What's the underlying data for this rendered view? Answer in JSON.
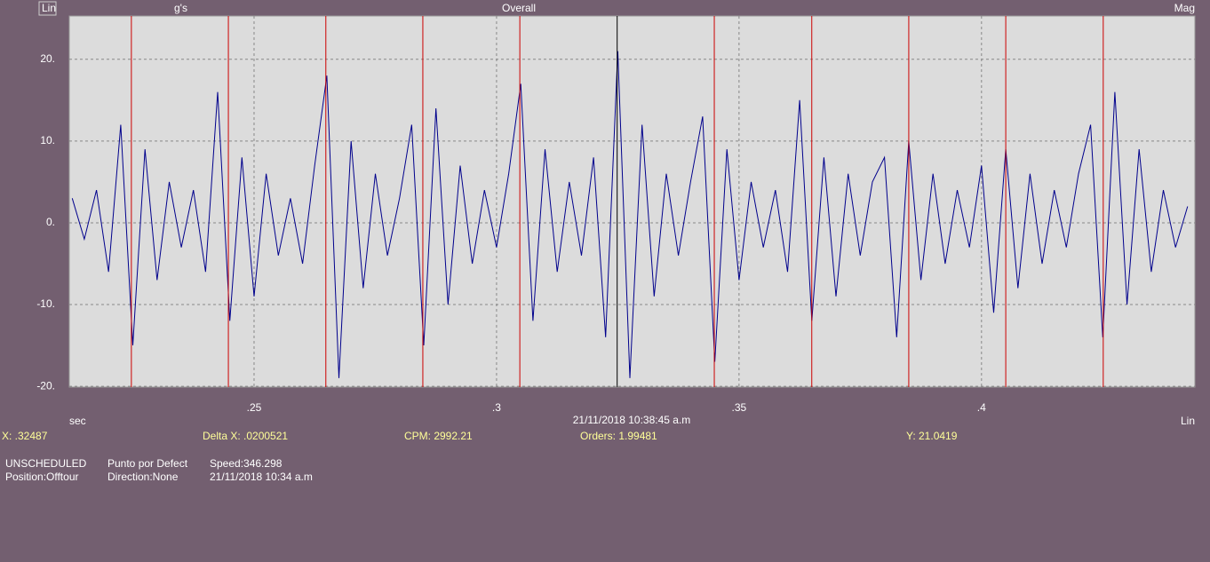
{
  "chart_data": {
    "type": "line",
    "title": "Overall",
    "y_label": "g's",
    "x_label": "sec",
    "timestamp": "21/11/2018 10:38:45 a.m",
    "x": [
      0.2125,
      0.215,
      0.2175,
      0.22,
      0.2225,
      0.225,
      0.2275,
      0.23,
      0.2325,
      0.235,
      0.2375,
      0.24,
      0.2425,
      0.245,
      0.2475,
      0.25,
      0.2525,
      0.255,
      0.2575,
      0.26,
      0.2625,
      0.265,
      0.2675,
      0.27,
      0.2725,
      0.275,
      0.2775,
      0.28,
      0.2825,
      0.285,
      0.2875,
      0.29,
      0.2925,
      0.295,
      0.2975,
      0.3,
      0.3025,
      0.305,
      0.3075,
      0.31,
      0.3125,
      0.315,
      0.3175,
      0.32,
      0.3225,
      0.325,
      0.3275,
      0.33,
      0.3325,
      0.335,
      0.3375,
      0.34,
      0.3425,
      0.345,
      0.3475,
      0.35,
      0.3525,
      0.355,
      0.3575,
      0.36,
      0.3625,
      0.365,
      0.3675,
      0.37,
      0.3725,
      0.375,
      0.3775,
      0.38,
      0.3825,
      0.385,
      0.3875,
      0.39,
      0.3925,
      0.395,
      0.3975,
      0.4,
      0.4025,
      0.405,
      0.4075,
      0.41,
      0.4125,
      0.415,
      0.4175,
      0.42,
      0.4225,
      0.425,
      0.4275,
      0.43,
      0.4325,
      0.435,
      0.4375,
      0.44,
      0.4425
    ],
    "series": [
      {
        "color": "#00008c",
        "values": [
          3,
          -2,
          4,
          -6,
          12,
          -15,
          9,
          -7,
          5,
          -3,
          4,
          -6,
          16,
          -12,
          8,
          -9,
          6,
          -4,
          3,
          -5,
          7,
          18,
          -19,
          10,
          -8,
          6,
          -4,
          3,
          12,
          -15,
          14,
          -10,
          7,
          -5,
          4,
          -3,
          6,
          17,
          -12,
          9,
          -6,
          5,
          -4,
          8,
          -14,
          21,
          -19,
          12,
          -9,
          6,
          -4,
          5,
          13,
          -17,
          9,
          -7,
          5,
          -3,
          4,
          -6,
          15,
          -12,
          8,
          -9,
          6,
          -4,
          5,
          8,
          -14,
          10,
          -7,
          6,
          -5,
          4,
          -3,
          7,
          -11,
          9,
          -8,
          6,
          -5,
          4,
          -3,
          6,
          12,
          -14,
          16,
          -10,
          9,
          -6,
          4,
          -3,
          2
        ]
      }
    ],
    "cursors": [
      0.2247,
      0.2447,
      0.2648,
      0.2848,
      0.3048,
      0.32487,
      0.3449,
      0.365,
      0.385,
      0.405,
      0.4251
    ],
    "cursor_colors": [
      "#cc0000",
      "#cc0000",
      "#cc0000",
      "#cc0000",
      "#cc0000",
      "#000000",
      "#cc0000",
      "#cc0000",
      "#cc0000",
      "#cc0000",
      "#cc0000"
    ],
    "xlim": [
      0.2119,
      0.444
    ],
    "ylim": [
      -20.1,
      25.3
    ],
    "xticks": [
      {
        "value": 0.25,
        "label": ".25"
      },
      {
        "value": 0.3,
        "label": ".3"
      },
      {
        "value": 0.35,
        "label": ".35"
      },
      {
        "value": 0.4,
        "label": ".4"
      }
    ],
    "yticks": [
      {
        "value": 20,
        "label": "20."
      },
      {
        "value": 10,
        "label": "10."
      },
      {
        "value": 0,
        "label": "0."
      },
      {
        "value": -10,
        "label": "-10."
      },
      {
        "value": -20,
        "label": "-20."
      }
    ],
    "grid": true
  },
  "header": {
    "scale": "Lin",
    "mode": "Mag"
  },
  "x_scale": "Lin",
  "readouts": {
    "x": "X: .32487",
    "delta_x": "Delta X: .0200521",
    "cpm": "CPM: 2992.21",
    "orders": "Orders: 1.99481",
    "y": "Y: 21.0419"
  },
  "info": {
    "schedule": "UNSCHEDULED",
    "point": "Punto por Defect",
    "speed": "Speed:346.298",
    "position": "Position:Offtour",
    "direction": "Direction:None",
    "date": "21/11/2018 10:34 a.m"
  }
}
